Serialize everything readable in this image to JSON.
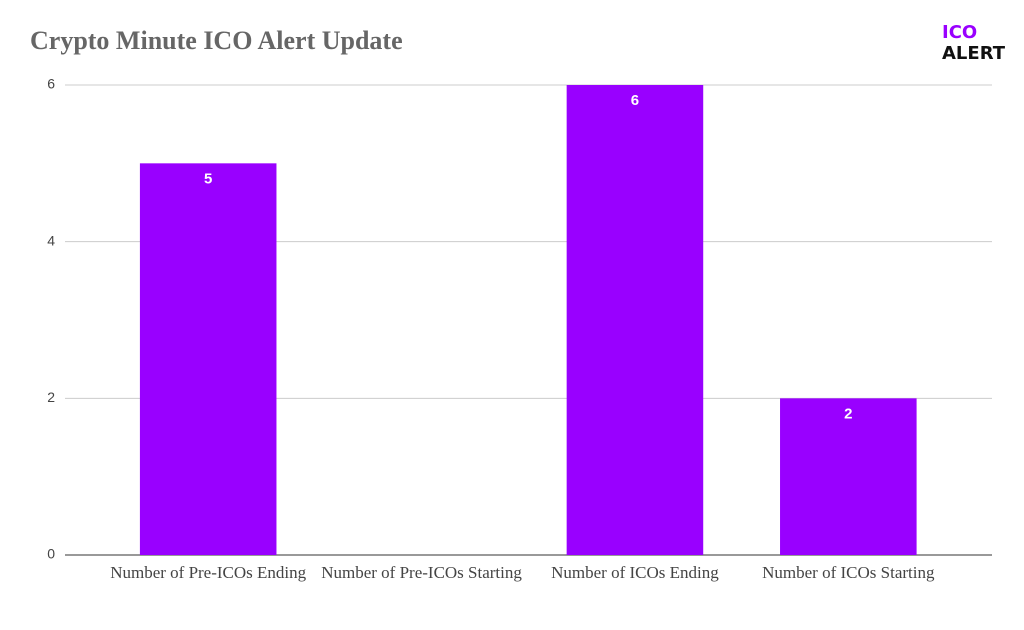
{
  "chart_data": {
    "type": "bar",
    "title": "Crypto Minute ICO Alert Update",
    "categories": [
      "Number of Pre-ICOs Ending",
      "Number of Pre-ICOs Starting",
      "Number of ICOs Ending",
      "Number of ICOs Starting"
    ],
    "values": [
      5,
      0,
      6,
      2
    ],
    "color": "#9900ff",
    "ylim": [
      0,
      6
    ],
    "yticks": [
      0,
      2,
      4,
      6
    ],
    "grid": true
  },
  "logo": {
    "line1": "ICO",
    "line2": "ALERT"
  }
}
